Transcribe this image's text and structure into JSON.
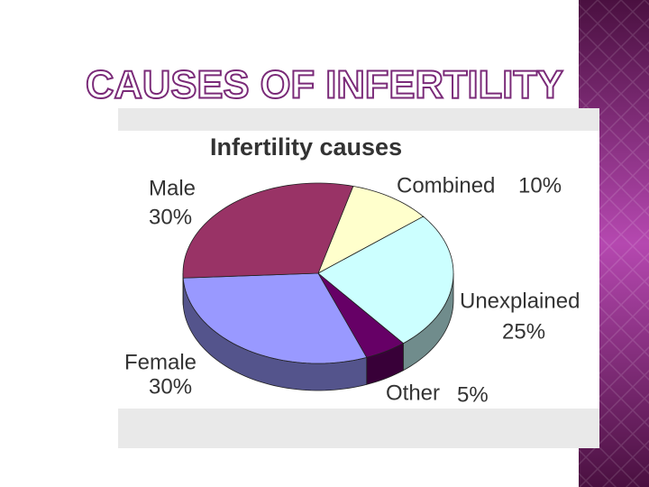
{
  "slide_title": "CAUSES OF INFERTILITY",
  "chart_data": {
    "type": "pie",
    "title": "Infertility causes",
    "categories": [
      "Combined",
      "Unexplained",
      "Other",
      "Female",
      "Male"
    ],
    "values": [
      10,
      25,
      5,
      30,
      30
    ],
    "value_labels": [
      "10%",
      "25%",
      "5%",
      "30%",
      "30%"
    ],
    "colors": [
      "#ffffcc",
      "#ccffff",
      "#660066",
      "#9999ff",
      "#993366"
    ]
  }
}
